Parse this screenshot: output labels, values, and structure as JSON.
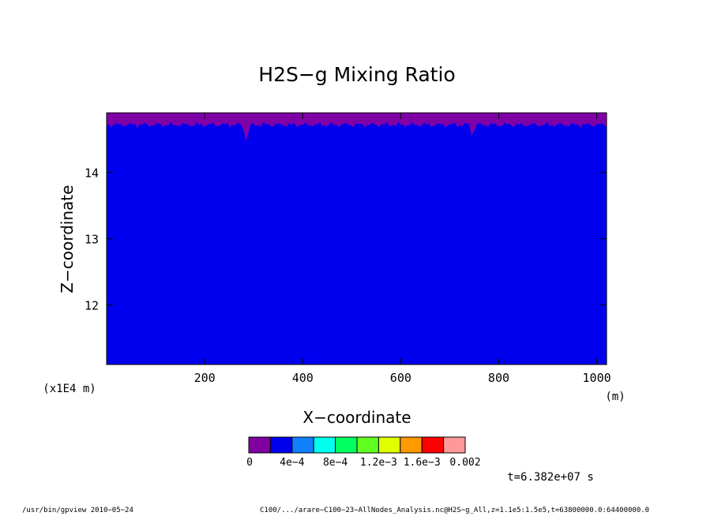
{
  "chart_data": {
    "type": "heatmap",
    "title": "H2S−g Mixing Ratio",
    "xlabel": "X−coordinate",
    "ylabel": "Z−coordinate",
    "x_unit": "(m)",
    "y_unit": "(x1E4 m)",
    "xlim": [
      0,
      1020
    ],
    "ylim": [
      11.1,
      14.9
    ],
    "x_ticks": [
      200,
      400,
      600,
      800,
      1000
    ],
    "y_ticks": [
      12,
      13,
      14
    ],
    "x_tick_labels": [
      "200",
      "400",
      "600",
      "800",
      "1000"
    ],
    "y_tick_labels": [
      "12",
      "13",
      "14"
    ],
    "boundary_z": 14.72,
    "fields": {
      "below_boundary_color": "#0000ee",
      "above_boundary_color": "#8000a8"
    },
    "colorbar": {
      "colors": [
        "#8000a0",
        "#0000ee",
        "#1080ff",
        "#00ffee",
        "#00ff60",
        "#60ff20",
        "#e0ff00",
        "#ff9900",
        "#ff0000",
        "#ff9999"
      ],
      "labels": [
        "0",
        "4e−4",
        "8e−4",
        "1.2e−3",
        "1.6e−3",
        "0.002"
      ],
      "range": [
        0,
        0.002
      ]
    },
    "time_label": "t=6.382e+07 s"
  },
  "footer": {
    "program": "/usr/bin/gpview  2010−05−24",
    "source": "C100/.../arare−C100−23−AllNodes_Analysis.nc@H2S−g_All,z=1.1e5:1.5e5,t=63800000.0:64400000.0"
  }
}
